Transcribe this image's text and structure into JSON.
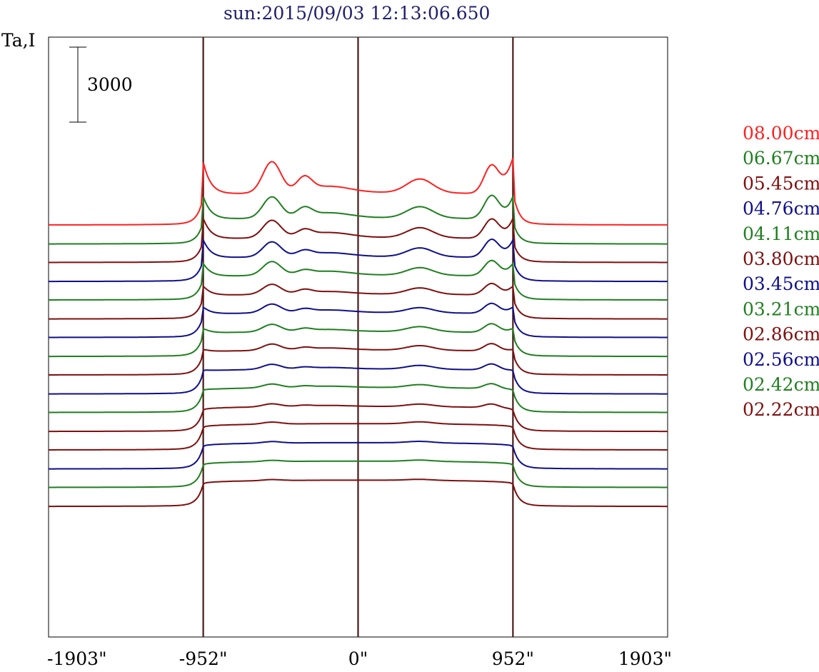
{
  "header": {
    "title": "sun:2015/09/03 12:13:06.650",
    "ylabel": "Ta,I"
  },
  "chart_data": {
    "type": "line",
    "title": "sun:2015/09/03 12:13:06.650",
    "ylabel": "Ta,I",
    "xlabel": "",
    "xlim": [
      -1903,
      1903
    ],
    "x_ticks": [
      {
        "value": -1903,
        "label": "-1903\""
      },
      {
        "value": -952,
        "label": "-952\""
      },
      {
        "value": 0,
        "label": "0\""
      },
      {
        "value": 952,
        "label": "952\""
      },
      {
        "value": 1903,
        "label": "1903\""
      }
    ],
    "vertical_lines": [
      -952,
      0,
      952
    ],
    "scale_bar": {
      "value": 3000,
      "label": "3000"
    },
    "series": [
      {
        "name": "08.00cm",
        "color": "#ff2020",
        "baseline": 0,
        "disk": 1300,
        "limb": 1400,
        "features": [
          [
            -530,
            1250,
            55
          ],
          [
            -330,
            550,
            45
          ],
          [
            -180,
            250,
            130
          ],
          [
            380,
            550,
            80
          ],
          [
            820,
            1100,
            45
          ],
          [
            930,
            200,
            40
          ]
        ]
      },
      {
        "name": "06.67cm",
        "color": "#1f7f1f",
        "baseline": -760,
        "disk": 1050,
        "limb": 1000,
        "features": [
          [
            -530,
            850,
            55
          ],
          [
            -330,
            350,
            45
          ],
          [
            -180,
            200,
            130
          ],
          [
            380,
            450,
            80
          ],
          [
            820,
            900,
            45
          ]
        ]
      },
      {
        "name": "05.45cm",
        "color": "#7f0f0f",
        "baseline": -1500,
        "disk": 1000,
        "limb": 900,
        "features": [
          [
            -530,
            700,
            55
          ],
          [
            -330,
            250,
            45
          ],
          [
            -180,
            200,
            130
          ],
          [
            380,
            400,
            80
          ],
          [
            820,
            750,
            45
          ]
        ]
      },
      {
        "name": "04.76cm",
        "color": "#0f0f8a",
        "baseline": -2260,
        "disk": 1000,
        "limb": 800,
        "features": [
          [
            -530,
            600,
            55
          ],
          [
            -330,
            200,
            45
          ],
          [
            -180,
            150,
            130
          ],
          [
            380,
            350,
            80
          ],
          [
            820,
            700,
            45
          ]
        ]
      },
      {
        "name": "04.11cm",
        "color": "#1f7f1f",
        "baseline": -3000,
        "disk": 1000,
        "limb": 600,
        "features": [
          [
            -530,
            550,
            55
          ],
          [
            -330,
            150,
            45
          ],
          [
            -180,
            150,
            130
          ],
          [
            380,
            300,
            80
          ],
          [
            820,
            600,
            45
          ]
        ]
      },
      {
        "name": "03.80cm",
        "color": "#7f0f0f",
        "baseline": -3760,
        "disk": 1000,
        "limb": 450,
        "features": [
          [
            -530,
            400,
            55
          ],
          [
            -330,
            150,
            45
          ],
          [
            -180,
            100,
            130
          ],
          [
            380,
            250,
            80
          ],
          [
            820,
            450,
            45
          ]
        ]
      },
      {
        "name": "03.45cm",
        "color": "#0f0f8a",
        "baseline": -4500,
        "disk": 1000,
        "limb": 350,
        "features": [
          [
            -530,
            350,
            55
          ],
          [
            -330,
            120,
            45
          ],
          [
            -180,
            100,
            130
          ],
          [
            380,
            200,
            80
          ],
          [
            820,
            400,
            45
          ]
        ]
      },
      {
        "name": "03.21cm",
        "color": "#1f7f1f",
        "baseline": -5260,
        "disk": 1000,
        "limb": 250,
        "features": [
          [
            -530,
            300,
            55
          ],
          [
            -330,
            100,
            45
          ],
          [
            -180,
            80,
            130
          ],
          [
            380,
            200,
            80
          ],
          [
            820,
            350,
            45
          ]
        ]
      },
      {
        "name": "02.86cm",
        "color": "#7f0f0f",
        "baseline": -6000,
        "disk": 1000,
        "limb": 150,
        "features": [
          [
            -530,
            250,
            55
          ],
          [
            -330,
            80,
            45
          ],
          [
            -180,
            80,
            130
          ],
          [
            380,
            180,
            80
          ],
          [
            820,
            300,
            45
          ]
        ]
      },
      {
        "name": "02.56cm",
        "color": "#0f0f8a",
        "baseline": -6760,
        "disk": 1000,
        "limb": 80,
        "features": [
          [
            -530,
            200,
            55
          ],
          [
            -330,
            60,
            45
          ],
          [
            -180,
            60,
            130
          ],
          [
            380,
            150,
            80
          ],
          [
            820,
            250,
            45
          ]
        ]
      },
      {
        "name": "02.42cm",
        "color": "#1f7f1f",
        "baseline": -7500,
        "disk": 1000,
        "limb": 30,
        "features": [
          [
            -530,
            150,
            55
          ],
          [
            -330,
            50,
            45
          ],
          [
            -180,
            50,
            130
          ],
          [
            380,
            120,
            80
          ],
          [
            820,
            200,
            45
          ]
        ]
      },
      {
        "name": "02.22cm",
        "color": "#7f0f0f",
        "baseline": -8260,
        "disk": 1000,
        "limb": 0,
        "features": [
          [
            -530,
            120,
            55
          ],
          [
            -330,
            40,
            45
          ],
          [
            -180,
            40,
            130
          ],
          [
            380,
            100,
            80
          ],
          [
            820,
            150,
            45
          ]
        ]
      }
    ],
    "extra_curves": [
      {
        "color": "#7f0f0f",
        "baseline": -9000,
        "disk": 1050,
        "limb": 0,
        "features": [
          [
            -530,
            80,
            55
          ],
          [
            380,
            80,
            80
          ]
        ]
      },
      {
        "color": "#0f0f8a",
        "baseline": -9760,
        "disk": 1050,
        "limb": 0,
        "features": [
          [
            -530,
            60,
            55
          ],
          [
            380,
            60,
            80
          ]
        ]
      },
      {
        "color": "#1f7f1f",
        "baseline": -10500,
        "disk": 1050,
        "limb": 0,
        "features": [
          [
            -530,
            50,
            55
          ],
          [
            380,
            50,
            80
          ]
        ]
      },
      {
        "color": "#7f0f0f",
        "baseline": -11260,
        "disk": 1050,
        "limb": 0,
        "features": [
          [
            -530,
            40,
            55
          ],
          [
            380,
            40,
            80
          ]
        ]
      }
    ]
  }
}
